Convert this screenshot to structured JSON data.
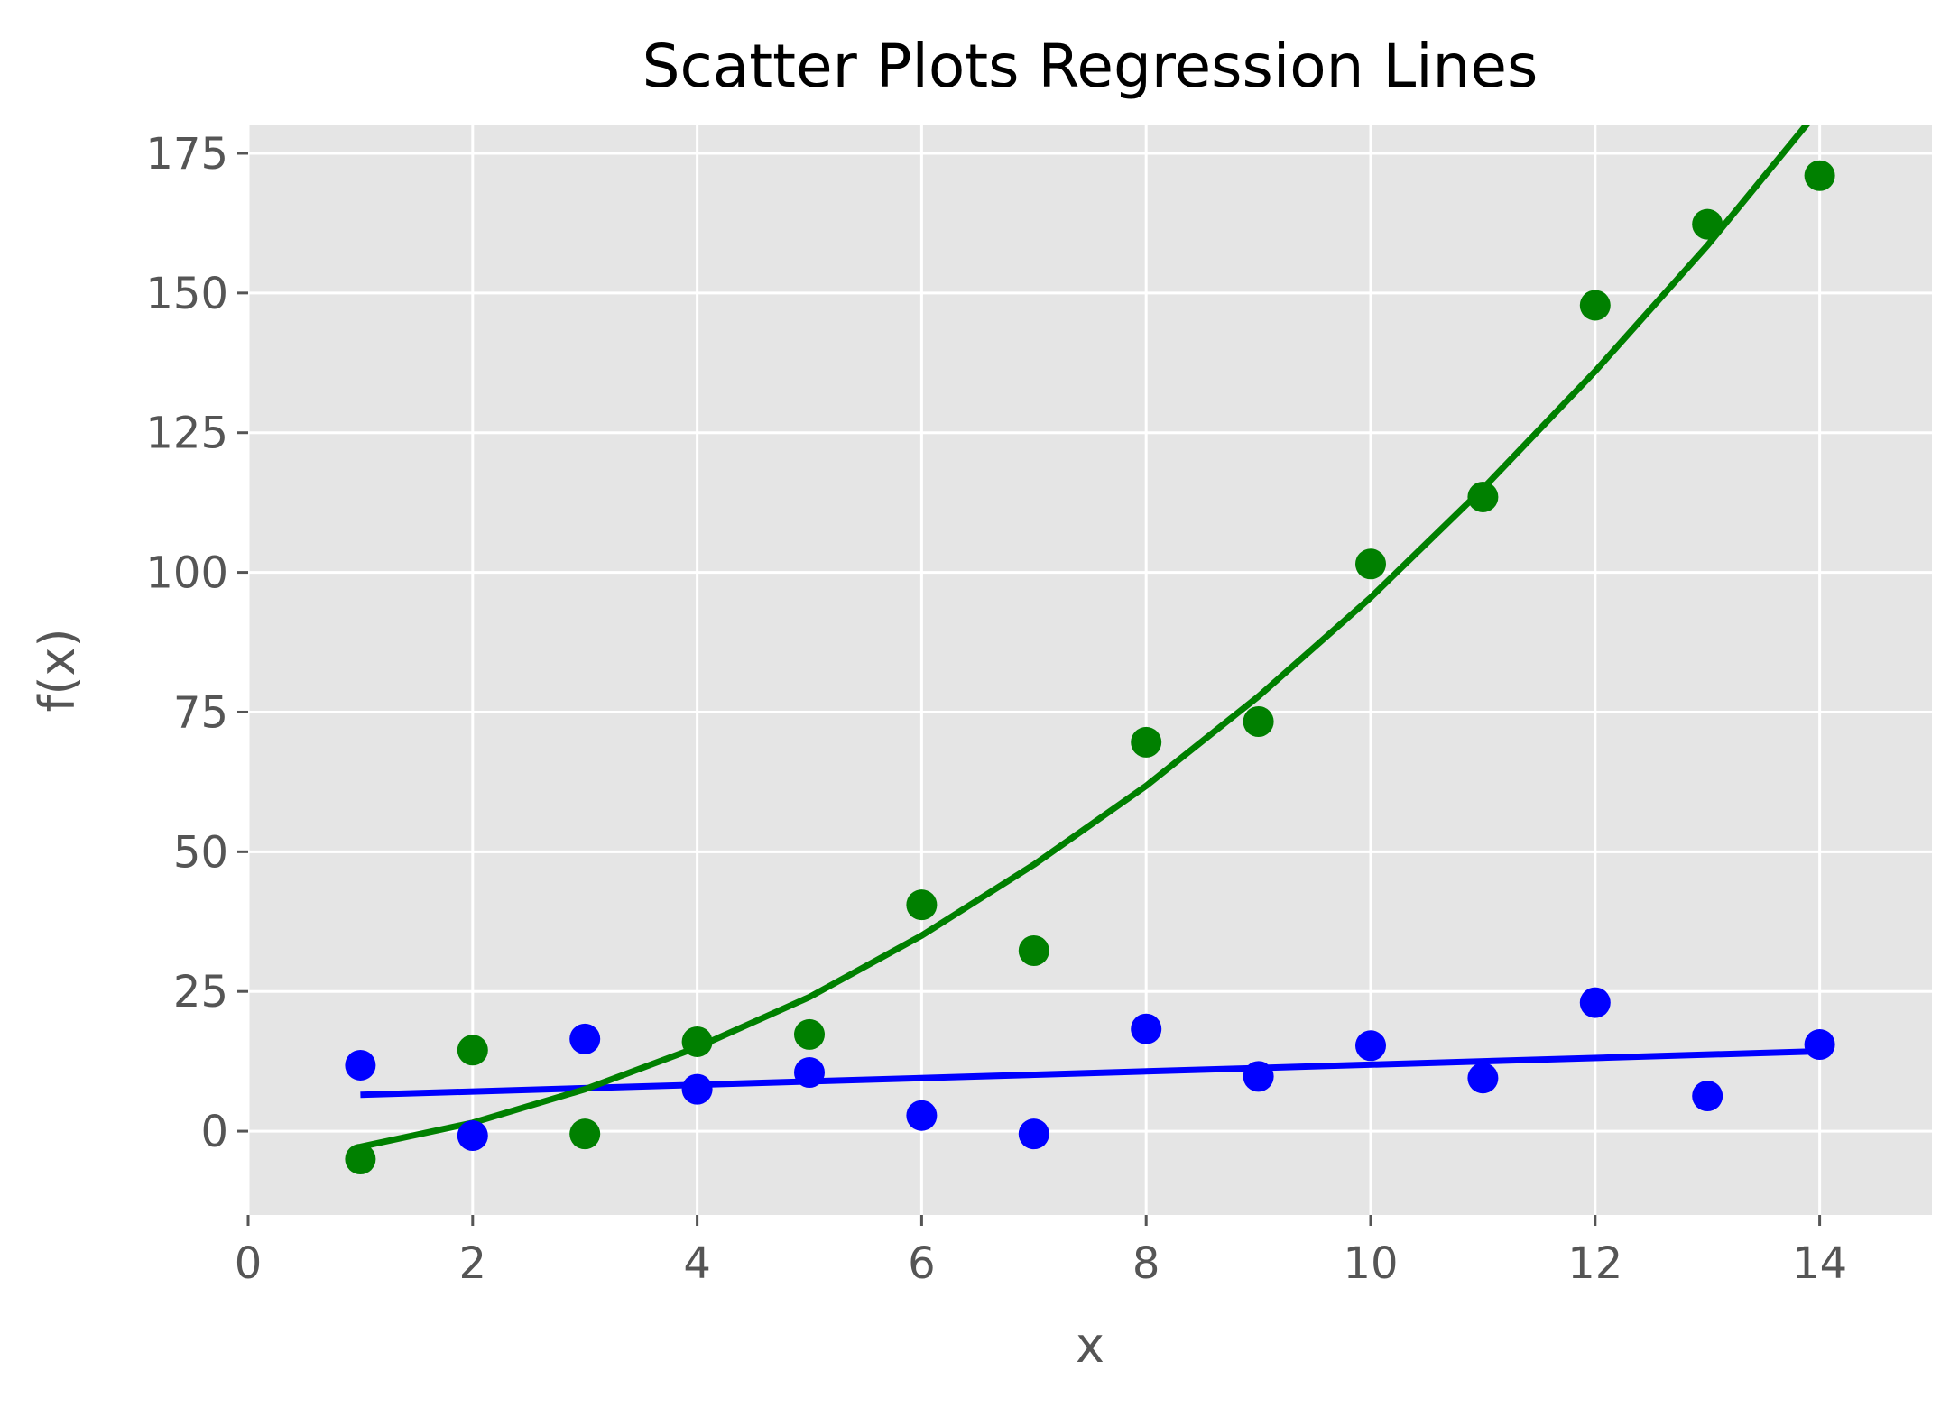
{
  "chart_data": {
    "type": "scatter",
    "title": "Scatter Plots Regression Lines",
    "xlabel": "x",
    "ylabel": "f(x)",
    "xlim": [
      0,
      15
    ],
    "ylim": [
      -15,
      180
    ],
    "xticks": [
      0,
      2,
      4,
      6,
      8,
      10,
      12,
      14
    ],
    "yticks": [
      0,
      25,
      50,
      75,
      100,
      125,
      150,
      175
    ],
    "grid": true,
    "background": "#e5e5e5",
    "grid_color": "#ffffff",
    "series": [
      {
        "color": "#0000ff",
        "x": [
          1,
          2,
          3,
          4,
          5,
          6,
          7,
          8,
          9,
          10,
          11,
          12,
          13,
          14
        ],
        "y": [
          11.8,
          -0.8,
          16.5,
          7.5,
          10.5,
          2.8,
          -0.5,
          18.3,
          9.8,
          15.3,
          9.5,
          23,
          6.3,
          15.5
        ],
        "fit_x": [
          1,
          14
        ],
        "fit_y": [
          6.5,
          14.3
        ]
      },
      {
        "color": "#008000",
        "x": [
          1,
          2,
          3,
          4,
          5,
          6,
          7,
          8,
          9,
          10,
          11,
          12,
          13,
          14
        ],
        "y": [
          -5,
          14.5,
          -0.5,
          16,
          17.3,
          40.5,
          32.3,
          69.6,
          73.3,
          101.5,
          113.5,
          147.8,
          162.3,
          171
        ],
        "fit_x": [
          1,
          2,
          3,
          4,
          5,
          6,
          7,
          8,
          9,
          10,
          11,
          12,
          13,
          14
        ],
        "fit_y": [
          -2.8,
          1.5,
          7.5,
          15,
          24,
          35,
          47.7,
          61.8,
          77.8,
          95.5,
          115,
          136,
          158.5,
          183
        ]
      }
    ]
  }
}
